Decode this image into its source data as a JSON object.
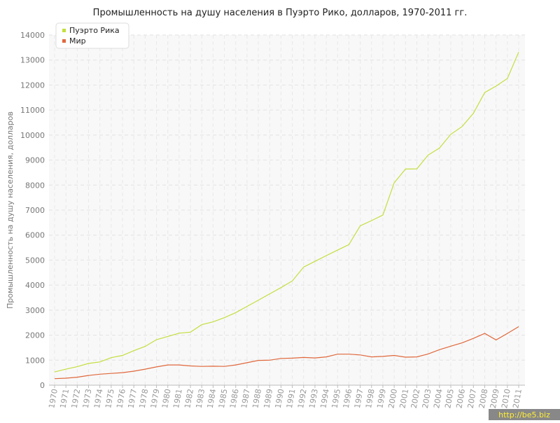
{
  "chart_data": {
    "type": "line",
    "title": "Промышленность на душу населения в Пуэрто Рико, долларов, 1970-2011 гг.",
    "y_label": "Промышленность на душу населения, долларов",
    "watermark": "http://be5.biz",
    "categories": [
      "1970",
      "1971",
      "1972",
      "1973",
      "1974",
      "1975",
      "1976",
      "1977",
      "1978",
      "1979",
      "1980",
      "1981",
      "1982",
      "1983",
      "1984",
      "1985",
      "1986",
      "1987",
      "1988",
      "1989",
      "1990",
      "1991",
      "1992",
      "1993",
      "1994",
      "1995",
      "1996",
      "1997",
      "1998",
      "1999",
      "2000",
      "2001",
      "2002",
      "2003",
      "2004",
      "2005",
      "2006",
      "2007",
      "2008",
      "2009",
      "2010",
      "2011"
    ],
    "series": [
      {
        "name": "Пуэрто Рика",
        "color": "#c3de3e",
        "values": [
          530,
          640,
          740,
          870,
          930,
          1100,
          1190,
          1380,
          1550,
          1820,
          1950,
          2080,
          2120,
          2420,
          2530,
          2700,
          2900,
          3150,
          3400,
          3650,
          3900,
          4170,
          4720,
          4950,
          5180,
          5400,
          5620,
          6370,
          6580,
          6800,
          8090,
          8640,
          8650,
          9200,
          9480,
          10030,
          10340,
          10870,
          11700,
          11960,
          12260,
          13320
        ]
      },
      {
        "name": "Мир",
        "color": "#e0683c",
        "values": [
          260,
          280,
          320,
          390,
          440,
          470,
          500,
          560,
          640,
          730,
          810,
          810,
          770,
          750,
          760,
          750,
          810,
          900,
          990,
          1000,
          1070,
          1080,
          1110,
          1090,
          1130,
          1240,
          1240,
          1210,
          1130,
          1150,
          1190,
          1120,
          1130,
          1250,
          1420,
          1560,
          1690,
          1870,
          2070,
          1810,
          2070,
          2340
        ]
      }
    ],
    "ylim": [
      0,
      14000
    ],
    "yticks": [
      0,
      1000,
      2000,
      3000,
      4000,
      5000,
      6000,
      7000,
      8000,
      9000,
      10000,
      11000,
      12000,
      13000,
      14000
    ],
    "grid": true,
    "legend": "top-left"
  }
}
